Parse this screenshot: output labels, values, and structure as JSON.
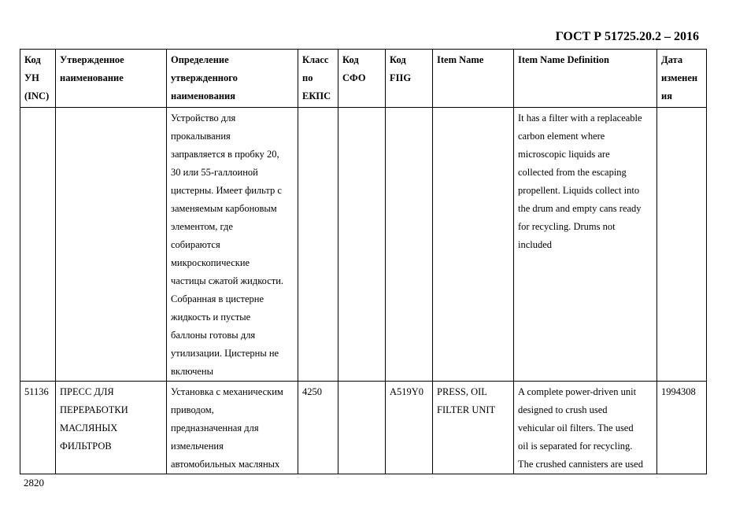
{
  "document_code": "ГОСТ Р 51725.20.2 – 2016",
  "columns": [
    "Код\nУН\n(INC)",
    "Утвержденное\nнаименование",
    "Определение\nутвержденного\nнаименования",
    "Класс\nпо\nЕКПС",
    "Код\nСФО",
    "Код\nFIIG",
    "Item Name",
    "Item Name Definition",
    "Дата\nизменен\nия"
  ],
  "rows": [
    [
      "",
      "",
      "Устройство для\nпрокалывания\nзаправляется в пробку 20,\n30 или 55-галлоиной\nцистерны. Имеет фильтр с\nзаменяемым карбоновым\nэлементом, где\nсобираются\nмикроскопические\nчастицы сжатой жидкости.\nСобранная в цистерне\nжидкость и пустые\nбаллоны  готовы для\nутилизации.  Цистерны не\nвключены",
      "",
      "",
      "",
      "",
      "It has a filter with a replaceable\ncarbon element where\nmicroscopic liquids are\ncollected from the escaping\npropellent.  Liquids collect into\nthe drum and empty cans ready\nfor recycling.  Drums not\nincluded",
      ""
    ],
    [
      "51136",
      "ПРЕСС ДЛЯ\nПЕРЕРАБОТКИ\nМАСЛЯНЫХ\nФИЛЬТРОВ",
      "Установка с механическим\nприводом,\nпредназначенная для\nизмельчения\nавтомобильных масляных",
      "4250",
      "",
      "A519Y0",
      "PRESS, OIL\nFILTER UNIT",
      "A complete power-driven unit\ndesigned to crush used\nvehicular oil filters.  The used\noil is separated for recycling.\nThe crushed cannisters are used",
      "1994308"
    ]
  ],
  "page_number": "2820"
}
